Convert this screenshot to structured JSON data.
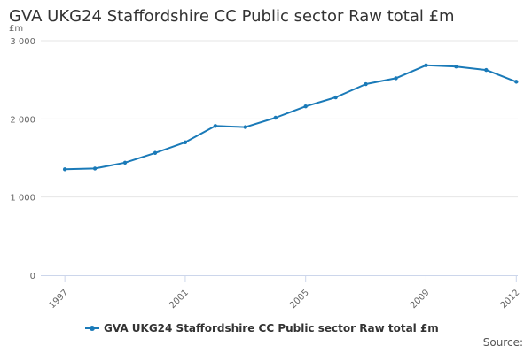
{
  "title": "GVA UKG24 Staffordshire CC Public sector Raw total £m",
  "source_label": "Source:",
  "colors": {
    "series": "#1a7ab8",
    "grid": "#e6e6e6",
    "axis": "#ccd6eb",
    "text": "#333333"
  },
  "chart_data": {
    "type": "line",
    "title": "GVA UKG24 Staffordshire CC Public sector Raw total £m",
    "ylabel": "£m",
    "xlabel": "",
    "ylim": [
      0,
      3000
    ],
    "xlim": [
      1997,
      2012
    ],
    "y_ticks": [
      0,
      1000,
      2000,
      3000
    ],
    "y_tick_labels": [
      "0",
      "1 000",
      "2 000",
      "3 000"
    ],
    "x_ticks": [
      1997,
      2001,
      2005,
      2009,
      2012
    ],
    "x_tick_labels": [
      "1997",
      "2001",
      "2005",
      "2009",
      "2012"
    ],
    "grid": true,
    "legend_position": "bottom",
    "x": [
      1997,
      1998,
      1999,
      2000,
      2001,
      2002,
      2003,
      2004,
      2005,
      2006,
      2007,
      2008,
      2009,
      2010,
      2011,
      2012
    ],
    "series": [
      {
        "name": "GVA UKG24 Staffordshire CC Public sector Raw total £m",
        "values": [
          1355,
          1365,
          1440,
          1565,
          1700,
          1910,
          1895,
          2015,
          2160,
          2275,
          2445,
          2520,
          2685,
          2670,
          2625,
          2475
        ]
      }
    ]
  }
}
